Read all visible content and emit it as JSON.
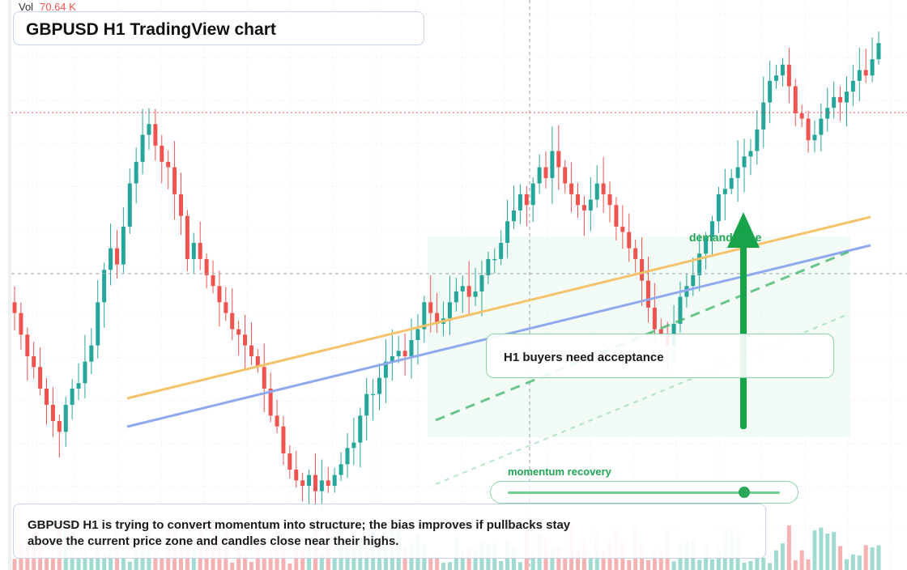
{
  "header": {
    "vol_label": "Vol",
    "vol_value": "70.64 K",
    "title": "GBPUSD H1 TradingView chart"
  },
  "annotations": {
    "callout": "H1 buyers need acceptance",
    "demand_zone": "demand zone",
    "momentum_label": "momentum recovery",
    "momentum_level": 0.87,
    "note": "GBPUSD H1 is trying to convert momentum into structure; the bias improves if pullbacks stay above the current price zone and candles close near their highs."
  },
  "colors": {
    "up": "#26a69a",
    "down": "#ef5350",
    "up_volume": "#8fd3c9",
    "down_volume": "#f5a3a6",
    "ma_fast": "#f5c26b",
    "ma_slow": "#8fa8ee",
    "accent_green": "#22a455",
    "price_line": "#e0534e"
  },
  "chart_data": {
    "type": "candlestick",
    "symbol": "GBPUSD",
    "timeframe": "H1",
    "y_scale": "relative-price-index",
    "closes": [
      50,
      46,
      42,
      40,
      36,
      33,
      30,
      28,
      33,
      36,
      37,
      41,
      44,
      52,
      58,
      62,
      59,
      66,
      74,
      78,
      83,
      85,
      81,
      78,
      77,
      72,
      68,
      60,
      63,
      60,
      57,
      55,
      52,
      50,
      47,
      46,
      44,
      42,
      40,
      36,
      31,
      29,
      24,
      21,
      19,
      18,
      20,
      17,
      19,
      18,
      20,
      22,
      25,
      26,
      31,
      35,
      35,
      38,
      41,
      42,
      43,
      42,
      45,
      47,
      52,
      50,
      48,
      49,
      52,
      54,
      55,
      53,
      54,
      57,
      60,
      60,
      63,
      67,
      69,
      72,
      70,
      74,
      77,
      75,
      80,
      77,
      74,
      72,
      70,
      69,
      71,
      74,
      72,
      70,
      66,
      65,
      62,
      60,
      56,
      51,
      47,
      46,
      44,
      48,
      53,
      55,
      57,
      61,
      64,
      67,
      72,
      73,
      75,
      77,
      79,
      80,
      84,
      89,
      93,
      94,
      96,
      92,
      87,
      86,
      82,
      83,
      86,
      88,
      90,
      89,
      91,
      93,
      95,
      94,
      97,
      100
    ],
    "ma_fast": {
      "start": 0.4,
      "end": 0.42
    },
    "ma_slow": {
      "start": 0.31,
      "end": 0.36
    }
  }
}
